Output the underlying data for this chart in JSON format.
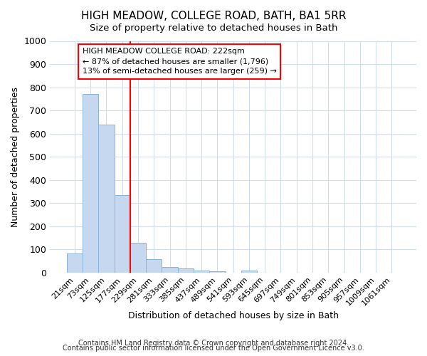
{
  "title": "HIGH MEADOW, COLLEGE ROAD, BATH, BA1 5RR",
  "subtitle": "Size of property relative to detached houses in Bath",
  "xlabel": "Distribution of detached houses by size in Bath",
  "ylabel": "Number of detached properties",
  "bar_labels": [
    "21sqm",
    "73sqm",
    "125sqm",
    "177sqm",
    "229sqm",
    "281sqm",
    "333sqm",
    "385sqm",
    "437sqm",
    "489sqm",
    "541sqm",
    "593sqm",
    "645sqm",
    "697sqm",
    "749sqm",
    "801sqm",
    "853sqm",
    "905sqm",
    "957sqm",
    "1009sqm",
    "1061sqm"
  ],
  "bar_values": [
    83,
    770,
    640,
    333,
    130,
    58,
    25,
    18,
    10,
    6,
    0,
    10,
    0,
    0,
    0,
    0,
    0,
    0,
    0,
    0,
    0
  ],
  "bar_color": "#c5d8f0",
  "bar_edge_color": "#8ab4d8",
  "background_color": "#ffffff",
  "grid_color": "#d0ddf0",
  "red_line_index": 4,
  "annotation_title": "HIGH MEADOW COLLEGE ROAD: 222sqm",
  "annotation_line1": "← 87% of detached houses are smaller (1,796)",
  "annotation_line2": "13% of semi-detached houses are larger (259) →",
  "ylim": [
    0,
    1000
  ],
  "yticks": [
    0,
    100,
    200,
    300,
    400,
    500,
    600,
    700,
    800,
    900,
    1000
  ],
  "footer1": "Contains HM Land Registry data © Crown copyright and database right 2024.",
  "footer2": "Contains public sector information licensed under the Open Government Licence v3.0."
}
